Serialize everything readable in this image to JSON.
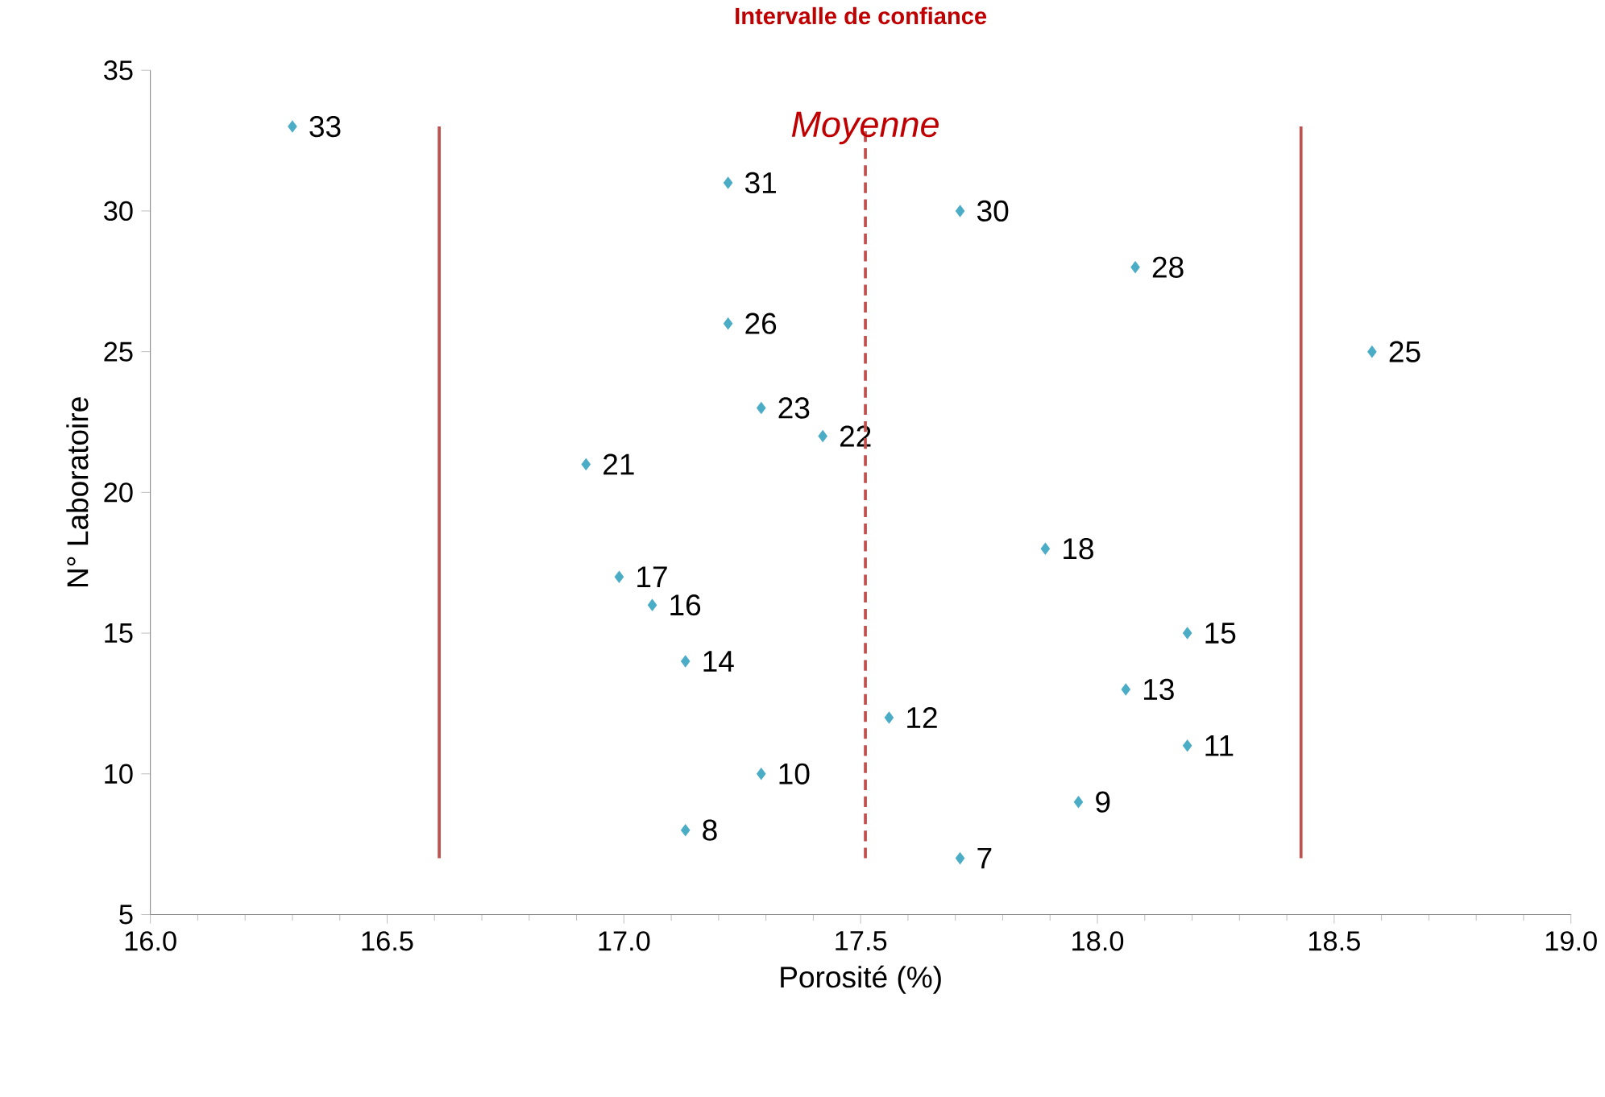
{
  "chart_data": {
    "type": "scatter",
    "title": "Intervalle de confiance",
    "xlabel": "Porosité (%)",
    "ylabel": "N° Laboratoire",
    "xlim": [
      16,
      19
    ],
    "ylim": [
      5,
      35
    ],
    "xticks": [
      {
        "value": 16,
        "label": "16.0"
      },
      {
        "value": 16.5,
        "label": "16.5"
      },
      {
        "value": 17,
        "label": "17.0"
      },
      {
        "value": 17.5,
        "label": "17.5"
      },
      {
        "value": 18,
        "label": "18.0"
      },
      {
        "value": 18.5,
        "label": "18.5"
      },
      {
        "value": 19,
        "label": "19.0"
      }
    ],
    "yticks": [
      5,
      10,
      15,
      20,
      25,
      30,
      35
    ],
    "grid": false,
    "annotations": [
      {
        "text": "*Moyenne*",
        "x": 17.51,
        "y": 32.1
      }
    ],
    "series": [
      {
        "color": "#4bacc6",
        "marker": "diamond",
        "x": [
          16.3,
          17.22,
          17.71,
          18.08,
          17.22,
          18.58,
          17.29,
          17.42,
          16.92,
          17.89,
          16.99,
          17.06,
          18.19,
          17.13,
          18.06,
          17.56,
          18.19,
          17.29,
          17.96,
          17.13,
          17.71
        ],
        "values": [
          33,
          31,
          30,
          28,
          26,
          25,
          23,
          22,
          21,
          18,
          17,
          16,
          15,
          14,
          13,
          12,
          11,
          10,
          9,
          8,
          7
        ],
        "value_labels": [
          "33",
          "31",
          "30",
          "28",
          "26",
          "25",
          "23",
          "22",
          "21",
          "18",
          "17",
          "16",
          "15",
          "14",
          "13",
          "12",
          "11",
          "10",
          "9",
          "8",
          "7"
        ]
      },
      {
        "type": "line",
        "color": "#c0504d",
        "marker": "none",
        "line_style": "solid",
        "x": [
          16.61,
          16.61
        ],
        "values": [
          7,
          33
        ]
      },
      {
        "type": "line",
        "color": "#c0504d",
        "marker": "none",
        "line_style": "solid",
        "x": [
          18.43,
          18.43
        ],
        "values": [
          7,
          33
        ]
      },
      {
        "type": "line",
        "color": "#c0504d",
        "marker": "none",
        "line_style": "dashed",
        "x": [
          17.51,
          17.51
        ],
        "values": [
          7,
          33
        ]
      }
    ]
  }
}
